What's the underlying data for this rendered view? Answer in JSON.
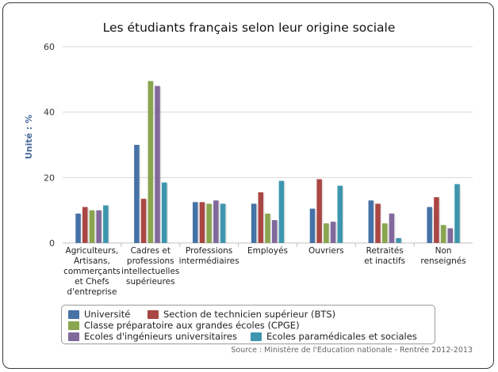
{
  "chart_data": {
    "type": "bar",
    "title": "Les étudiants français selon leur origine sociale",
    "ylabel": "Unité : %",
    "xlabel": "",
    "ylim": [
      0,
      60
    ],
    "yticks": [
      0,
      20,
      40,
      60
    ],
    "categories": [
      "Agriculteurs, Artisans, commerçants et Chefs d'entreprise",
      "Cadres et professions intellectuelles supérieures",
      "Professions intermédiaires",
      "Employés",
      "Ouvriers",
      "Retraités et inactifs",
      "Non renseignés"
    ],
    "series": [
      {
        "name": "Université",
        "color": "#4572a7",
        "values": [
          9,
          30,
          12.5,
          12,
          10.5,
          13,
          11
        ]
      },
      {
        "name": "Section de technicien supérieur (BTS)",
        "color": "#aa4643",
        "values": [
          11,
          13.5,
          12.5,
          15.5,
          19.5,
          12,
          14
        ]
      },
      {
        "name": "Classe préparatoire aux grandes écoles (CPGE)",
        "color": "#89a54e",
        "values": [
          10,
          49.5,
          12,
          9,
          6,
          6,
          5.5
        ]
      },
      {
        "name": "Ecoles d'ingénieurs universitaires",
        "color": "#80699b",
        "values": [
          10,
          48,
          13,
          7,
          6.5,
          9,
          4.5
        ]
      },
      {
        "name": "Ecoles paramédicales et sociales",
        "color": "#3d96ae",
        "values": [
          11.5,
          18.5,
          12,
          19,
          17.5,
          1.5,
          18
        ]
      }
    ],
    "legend_position": "bottom",
    "grid": true
  },
  "source": "Source : Ministère de l'Education nationale - Rentrée 2012-2013"
}
